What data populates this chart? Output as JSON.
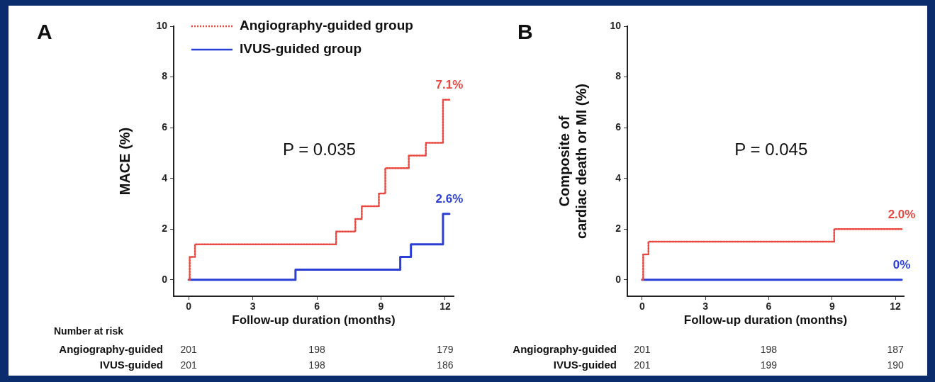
{
  "chart_data": [
    {
      "type": "step",
      "title": "A",
      "xlabel": "Follow-up duration (months)",
      "ylabel": "MACE (%)",
      "xlim": [
        -0.7,
        12.4
      ],
      "xticks": [
        0,
        3,
        6,
        9,
        12
      ],
      "ylim": [
        -0.65,
        10
      ],
      "yticks": [
        0,
        2,
        4,
        6,
        8,
        10
      ],
      "legend": "top left",
      "grid": false,
      "marker": "none",
      "series": [
        {
          "name": "Angiography-guided group",
          "color": "#e8473f",
          "line_style": "dotted",
          "x": [
            0,
            0.05,
            0.3,
            6.9,
            7.8,
            8.1,
            8.9,
            9.2,
            10.3,
            11.1,
            11.9,
            12.2
          ],
          "values": [
            0,
            0.9,
            1.4,
            1.9,
            2.4,
            2.9,
            3.4,
            4.4,
            4.9,
            5.4,
            7.1,
            7.1
          ]
        },
        {
          "name": "IVUS-guided group",
          "color": "#2b3fd6",
          "line_style": "solid",
          "x": [
            0,
            5.0,
            9.9,
            10.4,
            11.9,
            12.2
          ],
          "values": [
            0,
            0.4,
            0.9,
            1.4,
            2.6,
            2.6
          ]
        }
      ],
      "annotations": [
        "P = 0.035",
        "7.1%",
        "2.6%",
        "Number at risk",
        "Angiography-guided",
        "201",
        "198",
        "179",
        "IVUS-guided",
        "201",
        "198",
        "186"
      ]
    },
    {
      "type": "step",
      "title": "B",
      "xlabel": "Follow-up duration (months)",
      "ylabel": "Composite of\ncardiac death or MI (%)",
      "xlim": [
        -0.7,
        12.4
      ],
      "xticks": [
        0,
        3,
        6,
        9,
        12
      ],
      "ylim": [
        -0.65,
        10
      ],
      "yticks": [
        0,
        2,
        4,
        6,
        8,
        10
      ],
      "grid": false,
      "marker": "none",
      "series": [
        {
          "color": "#e8473f",
          "line_style": "dotted",
          "x": [
            0,
            0.05,
            0.3,
            9.1,
            12.3
          ],
          "values": [
            0,
            1.0,
            1.5,
            2.0,
            2.0
          ]
        },
        {
          "color": "#2b3fd6",
          "line_style": "solid",
          "x": [
            0,
            12.3
          ],
          "values": [
            0,
            0
          ]
        }
      ],
      "annotations": [
        "P = 0.045",
        "2.0%",
        "0%",
        "Angiography-guided",
        "201",
        "198",
        "187",
        "IVUS-guided",
        "201",
        "199",
        "190"
      ]
    }
  ]
}
